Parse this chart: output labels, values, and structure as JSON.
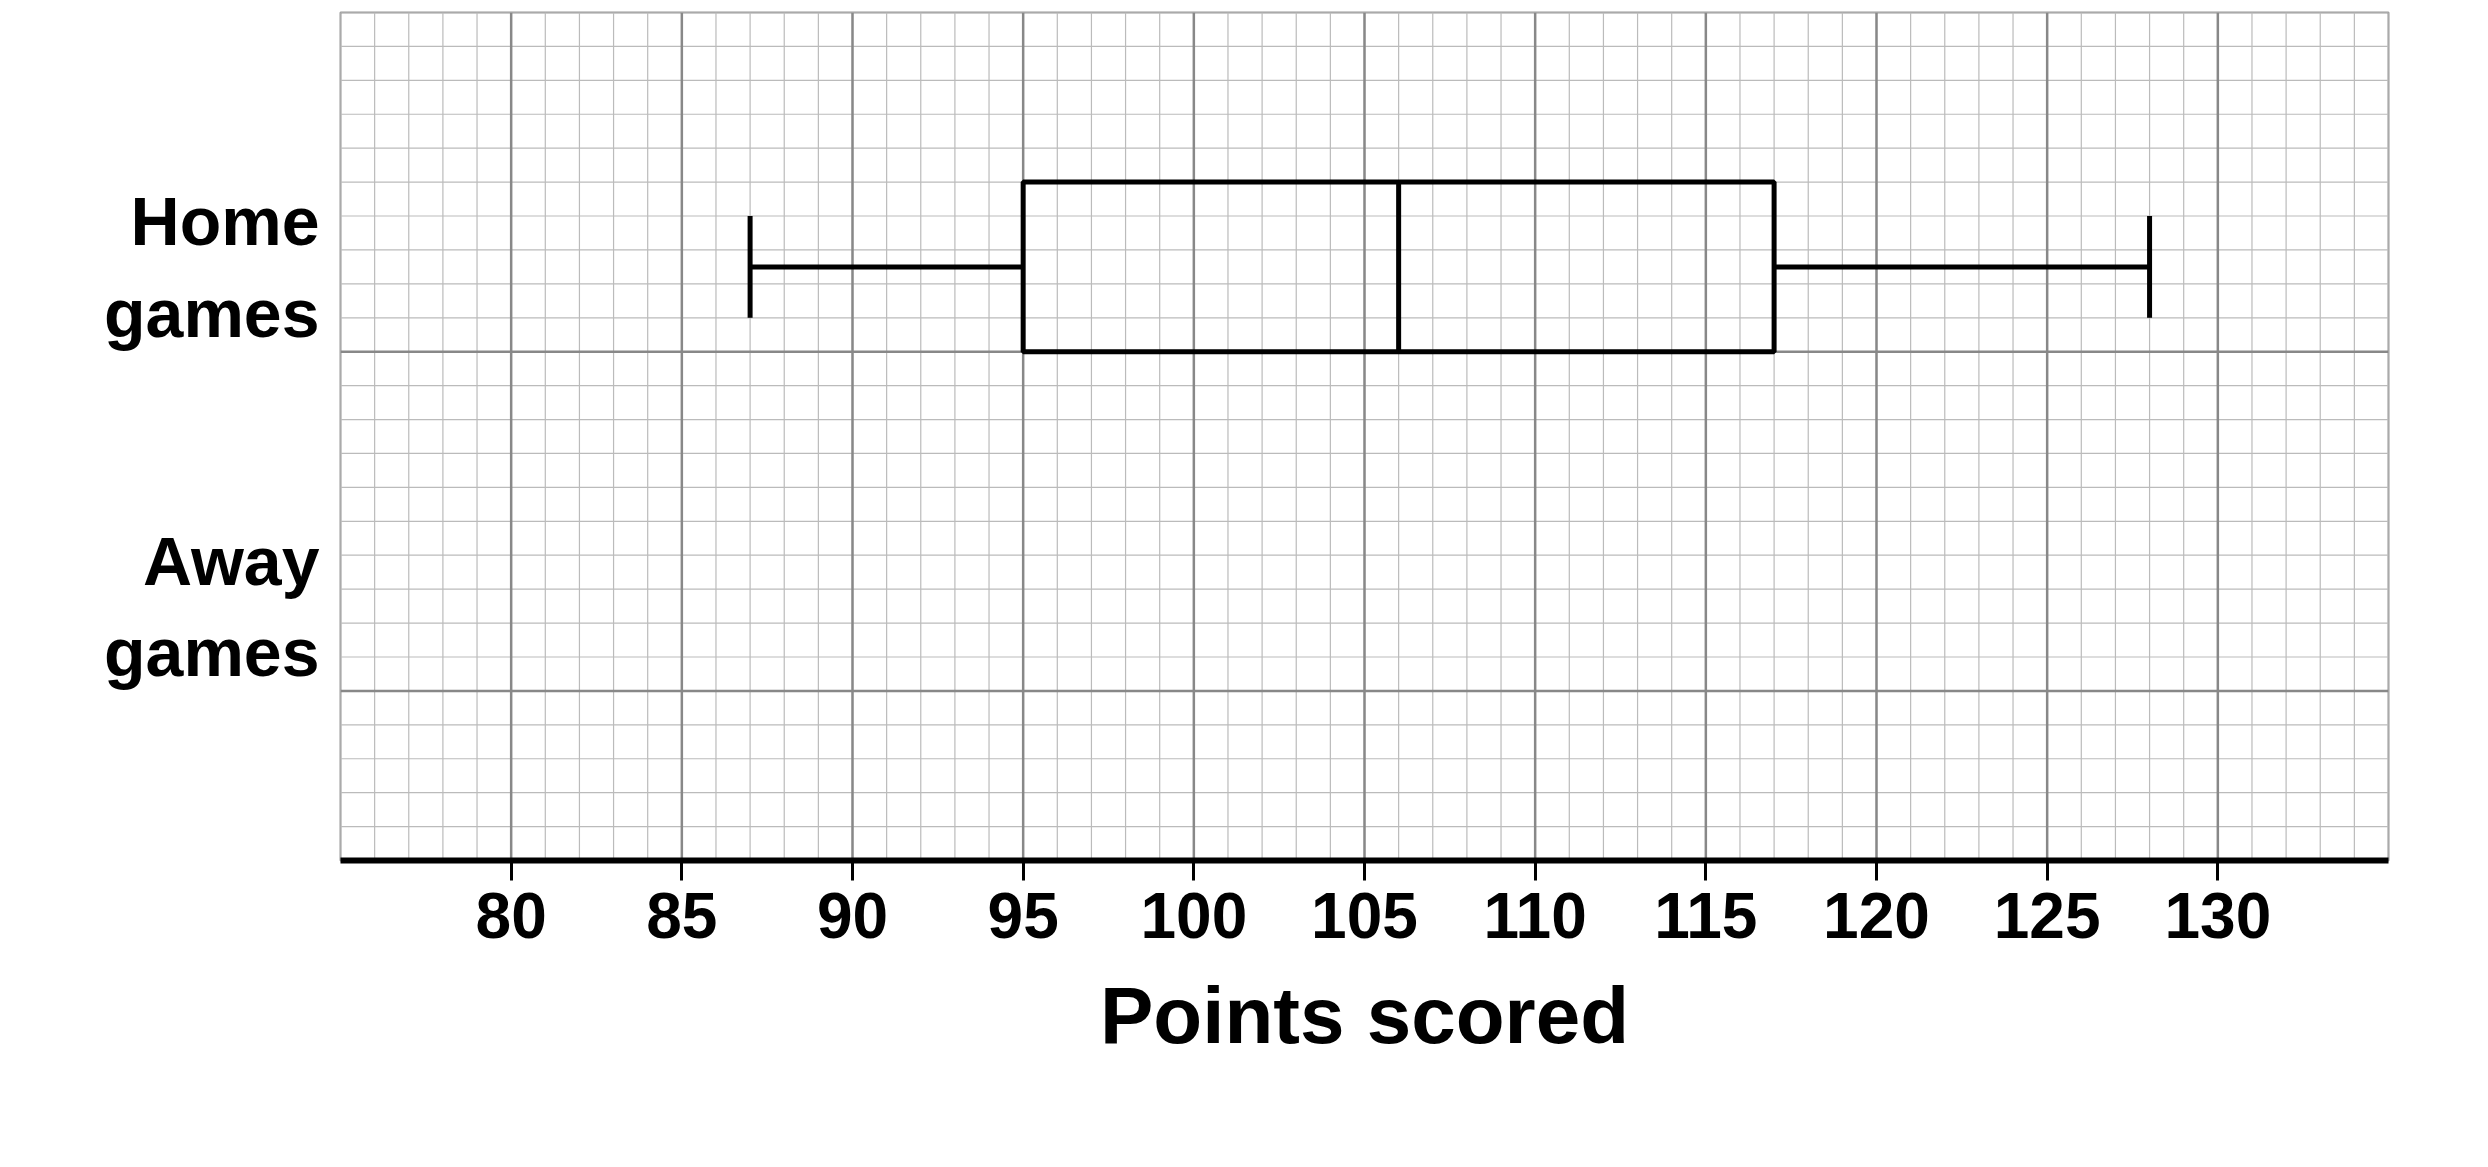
{
  "chart_data": {
    "type": "box",
    "orientation": "horizontal",
    "categories": [
      "Home games",
      "Away games"
    ],
    "boxes": [
      {
        "low": 87,
        "q1": 95,
        "median": 106,
        "q3": 117,
        "high": 128
      },
      null
    ],
    "xlabel": "Points scored",
    "xlim": [
      75,
      135
    ],
    "xticks": [
      80,
      85,
      90,
      95,
      100,
      105,
      110,
      115,
      120,
      125,
      130
    ],
    "grid": true,
    "color": "#000000"
  }
}
